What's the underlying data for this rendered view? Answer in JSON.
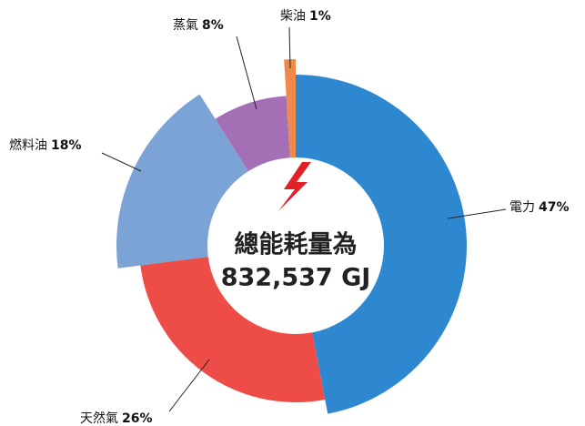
{
  "chart_data": {
    "type": "donut",
    "center_text": [
      "總能耗量為",
      "832,537 GJ"
    ],
    "categories": [
      "電力",
      "天然氣",
      "燃料油",
      "蒸氣",
      "柴油"
    ],
    "values": [
      47,
      26,
      18,
      8,
      1
    ],
    "value_labels": [
      "47%",
      "26%",
      "18%",
      "8%",
      "1%"
    ],
    "colors": [
      "#2e88cf",
      "#ee4c47",
      "#7ba3d6",
      "#a56fb5",
      "#f08a4b"
    ]
  }
}
